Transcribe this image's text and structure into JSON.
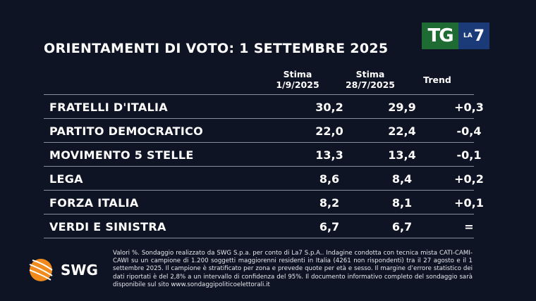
{
  "title": "ORIENTAMENTI DI VOTO: 1 SETTEMBRE 2025",
  "logo": {
    "tg": "TG",
    "la": "LA",
    "seven": "7"
  },
  "chart_data": {
    "type": "table",
    "title": "ORIENTAMENTI DI VOTO: 1 SETTEMBRE 2025",
    "columns": [
      {
        "line1": "Stima",
        "line2": "1/9/2025"
      },
      {
        "line1": "Stima",
        "line2": "28/7/2025"
      },
      {
        "line1": "Trend",
        "line2": ""
      }
    ],
    "rows": [
      {
        "party": "FRATELLI D'ITALIA",
        "current": "30,2",
        "previous": "29,9",
        "trend": "+0,3"
      },
      {
        "party": "PARTITO DEMOCRATICO",
        "current": "22,0",
        "previous": "22,4",
        "trend": "-0,4"
      },
      {
        "party": "MOVIMENTO 5 STELLE",
        "current": "13,3",
        "previous": "13,4",
        "trend": "-0,1"
      },
      {
        "party": "LEGA",
        "current": "8,6",
        "previous": "8,4",
        "trend": "+0,2"
      },
      {
        "party": "FORZA ITALIA",
        "current": "8,2",
        "previous": "8,1",
        "trend": "+0,1"
      },
      {
        "party": "VERDI E SINISTRA",
        "current": "6,7",
        "previous": "6,7",
        "trend": "="
      }
    ]
  },
  "footer": {
    "brand": "SWG",
    "note": "Valori %. Sondaggio realizzato da SWG S.p.a. per conto di La7 S.p.A.. Indagine condotta con tecnica mista CATI-CAMI-CAWI su un campione di 1.200 soggetti maggiorenni residenti in Italia (4261 non rispondenti) tra il 27 agosto e il 1 settembre 2025. Il campione è stratificato per zona e prevede quote per età e sesso. Il margine d’errore statistico dei dati riportati è del 2,8% a un intervallo di confidenza del 95%. Il documento informativo completo del sondaggio sarà disponibile sul sito www.sondaggipoliticoelettorali.it"
  }
}
